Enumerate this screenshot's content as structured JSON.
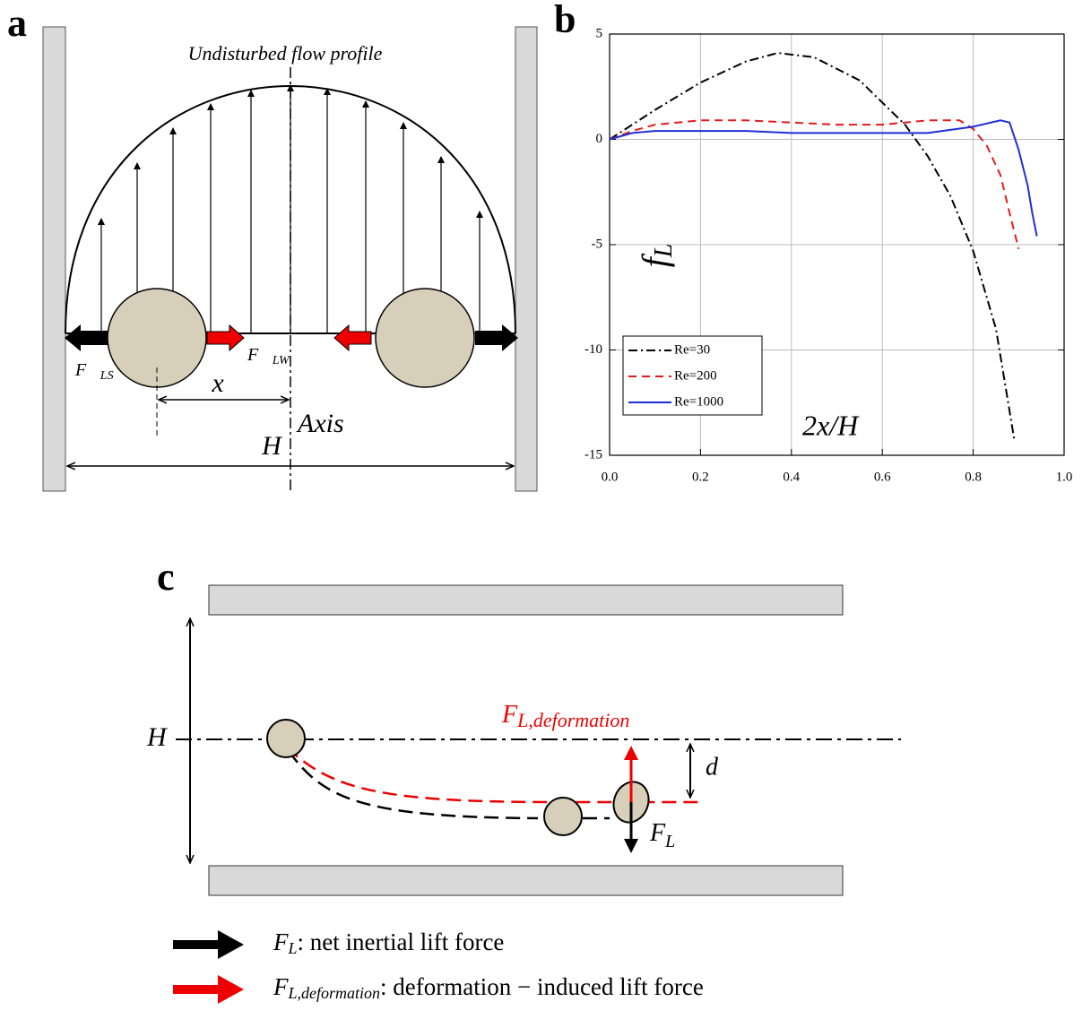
{
  "panel_a": {
    "label": "a",
    "title": "Undisturbed flow profile",
    "force_wall": {
      "symbol": "F⃗",
      "subscript": "LS"
    },
    "force_shear": {
      "symbol": "F⃗",
      "subscript": "LW"
    },
    "distance": "x",
    "width": "H",
    "axis": "Axis"
  },
  "chart_data": {
    "type": "line",
    "label": "b",
    "xlabel": "2x/H",
    "ylabel": {
      "symbol": "f",
      "subscript": "L"
    },
    "xlim": [
      0,
      1
    ],
    "ylim": [
      -15,
      5
    ],
    "xticks": [
      {
        "value": 0,
        "label": "0.0"
      },
      {
        "value": 0.2,
        "label": "0.2"
      },
      {
        "value": 0.4,
        "label": "0.4"
      },
      {
        "value": 0.6,
        "label": "0.6"
      },
      {
        "value": 0.8,
        "label": "0.8"
      },
      {
        "value": 1,
        "label": "1.0"
      }
    ],
    "yticks": [
      -15,
      -10,
      -5,
      0,
      5
    ],
    "grid": true,
    "legend": "lower left",
    "series": [
      {
        "name": "Re=30",
        "color": "#000000",
        "style": "dashdot",
        "x": [
          0,
          0.1,
          0.2,
          0.3,
          0.37,
          0.45,
          0.55,
          0.65,
          0.7,
          0.75,
          0.8,
          0.85,
          0.89
        ],
        "values": [
          0,
          1.4,
          2.7,
          3.7,
          4.1,
          3.9,
          2.8,
          0.7,
          -0.8,
          -2.7,
          -5.3,
          -9.0,
          -14.2
        ]
      },
      {
        "name": "Re=200",
        "color": "#e41a1c",
        "style": "dash",
        "x": [
          0,
          0.05,
          0.1,
          0.2,
          0.3,
          0.4,
          0.5,
          0.6,
          0.7,
          0.77,
          0.8,
          0.83,
          0.86,
          0.88,
          0.9
        ],
        "values": [
          0,
          0.4,
          0.7,
          0.9,
          0.9,
          0.8,
          0.7,
          0.7,
          0.9,
          0.9,
          0.5,
          -0.3,
          -1.7,
          -3.5,
          -5.2
        ]
      },
      {
        "name": "Re=1000",
        "color": "#1f2fd6",
        "style": "solid",
        "x": [
          0,
          0.05,
          0.1,
          0.2,
          0.3,
          0.4,
          0.5,
          0.6,
          0.7,
          0.8,
          0.86,
          0.88,
          0.9,
          0.92,
          0.93,
          0.94
        ],
        "values": [
          0,
          0.3,
          0.4,
          0.4,
          0.4,
          0.3,
          0.3,
          0.3,
          0.3,
          0.6,
          0.9,
          0.8,
          -0.5,
          -2.2,
          -3.5,
          -4.6
        ]
      }
    ]
  },
  "panel_c": {
    "label": "c",
    "width": "H",
    "offset": "d",
    "deformation_force": {
      "symbol": "F",
      "subscript": "L,deformation"
    },
    "net_force": {
      "symbol": "F",
      "subscript": "L"
    },
    "legend": [
      {
        "symbol": "F",
        "subscript": "L",
        "text": ": net inertial lift force"
      },
      {
        "symbol": "F",
        "subscript": "L,deformation",
        "text": ": deformation − induced lift force"
      }
    ]
  }
}
